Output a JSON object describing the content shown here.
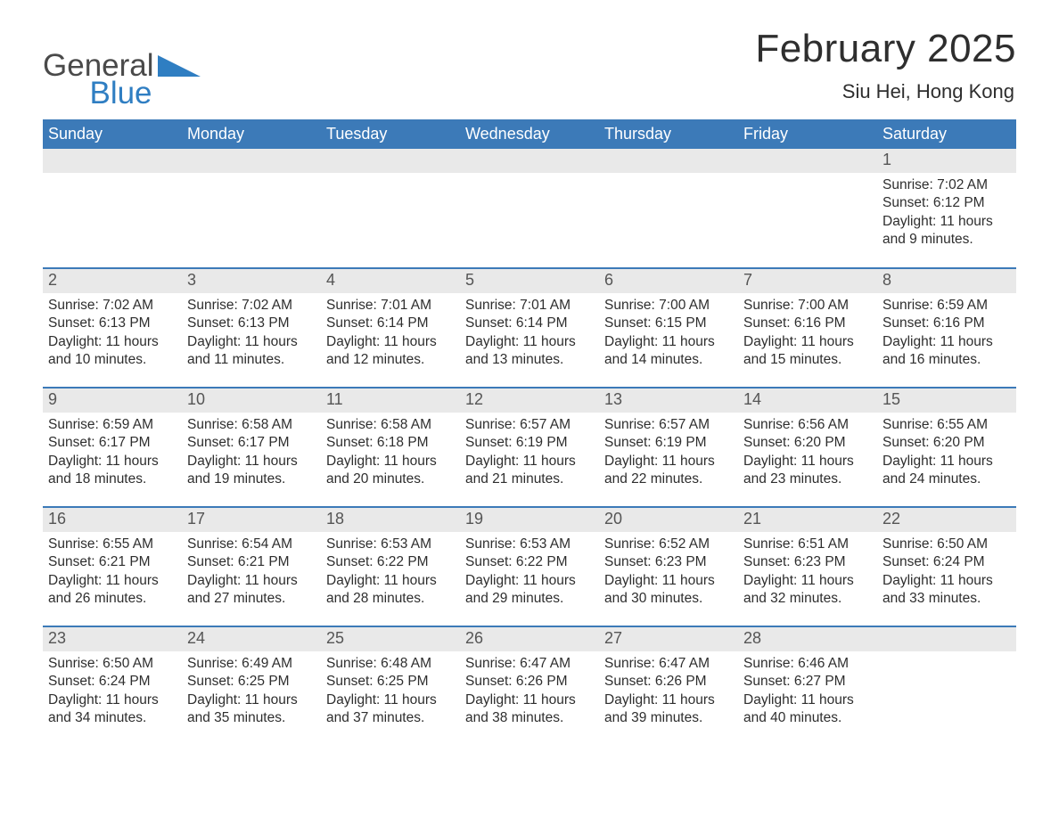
{
  "brand": {
    "line1": "General",
    "line2": "Blue",
    "text_color": "#4a4a4a",
    "accent_color": "#2f7ec2"
  },
  "title": "February 2025",
  "location": "Siu Hei, Hong Kong",
  "colors": {
    "header_bg": "#3c7ab8",
    "header_text": "#ffffff",
    "daynum_bg": "#e9e9e9",
    "daynum_text": "#555555",
    "body_text": "#2e2e2e",
    "page_bg": "#ffffff",
    "row_sep": "#3c7ab8"
  },
  "typography": {
    "title_fontsize": 44,
    "location_fontsize": 22,
    "header_fontsize": 18,
    "daynum_fontsize": 18,
    "body_fontsize": 15.5,
    "font_family": "Arial"
  },
  "layout": {
    "columns": 7,
    "rows": 5,
    "first_day_column_index": 6
  },
  "weekdays": [
    "Sunday",
    "Monday",
    "Tuesday",
    "Wednesday",
    "Thursday",
    "Friday",
    "Saturday"
  ],
  "days": [
    {
      "n": "1",
      "sunrise": "Sunrise: 7:02 AM",
      "sunset": "Sunset: 6:12 PM",
      "d1": "Daylight: 11 hours",
      "d2": "and 9 minutes."
    },
    {
      "n": "2",
      "sunrise": "Sunrise: 7:02 AM",
      "sunset": "Sunset: 6:13 PM",
      "d1": "Daylight: 11 hours",
      "d2": "and 10 minutes."
    },
    {
      "n": "3",
      "sunrise": "Sunrise: 7:02 AM",
      "sunset": "Sunset: 6:13 PM",
      "d1": "Daylight: 11 hours",
      "d2": "and 11 minutes."
    },
    {
      "n": "4",
      "sunrise": "Sunrise: 7:01 AM",
      "sunset": "Sunset: 6:14 PM",
      "d1": "Daylight: 11 hours",
      "d2": "and 12 minutes."
    },
    {
      "n": "5",
      "sunrise": "Sunrise: 7:01 AM",
      "sunset": "Sunset: 6:14 PM",
      "d1": "Daylight: 11 hours",
      "d2": "and 13 minutes."
    },
    {
      "n": "6",
      "sunrise": "Sunrise: 7:00 AM",
      "sunset": "Sunset: 6:15 PM",
      "d1": "Daylight: 11 hours",
      "d2": "and 14 minutes."
    },
    {
      "n": "7",
      "sunrise": "Sunrise: 7:00 AM",
      "sunset": "Sunset: 6:16 PM",
      "d1": "Daylight: 11 hours",
      "d2": "and 15 minutes."
    },
    {
      "n": "8",
      "sunrise": "Sunrise: 6:59 AM",
      "sunset": "Sunset: 6:16 PM",
      "d1": "Daylight: 11 hours",
      "d2": "and 16 minutes."
    },
    {
      "n": "9",
      "sunrise": "Sunrise: 6:59 AM",
      "sunset": "Sunset: 6:17 PM",
      "d1": "Daylight: 11 hours",
      "d2": "and 18 minutes."
    },
    {
      "n": "10",
      "sunrise": "Sunrise: 6:58 AM",
      "sunset": "Sunset: 6:17 PM",
      "d1": "Daylight: 11 hours",
      "d2": "and 19 minutes."
    },
    {
      "n": "11",
      "sunrise": "Sunrise: 6:58 AM",
      "sunset": "Sunset: 6:18 PM",
      "d1": "Daylight: 11 hours",
      "d2": "and 20 minutes."
    },
    {
      "n": "12",
      "sunrise": "Sunrise: 6:57 AM",
      "sunset": "Sunset: 6:19 PM",
      "d1": "Daylight: 11 hours",
      "d2": "and 21 minutes."
    },
    {
      "n": "13",
      "sunrise": "Sunrise: 6:57 AM",
      "sunset": "Sunset: 6:19 PM",
      "d1": "Daylight: 11 hours",
      "d2": "and 22 minutes."
    },
    {
      "n": "14",
      "sunrise": "Sunrise: 6:56 AM",
      "sunset": "Sunset: 6:20 PM",
      "d1": "Daylight: 11 hours",
      "d2": "and 23 minutes."
    },
    {
      "n": "15",
      "sunrise": "Sunrise: 6:55 AM",
      "sunset": "Sunset: 6:20 PM",
      "d1": "Daylight: 11 hours",
      "d2": "and 24 minutes."
    },
    {
      "n": "16",
      "sunrise": "Sunrise: 6:55 AM",
      "sunset": "Sunset: 6:21 PM",
      "d1": "Daylight: 11 hours",
      "d2": "and 26 minutes."
    },
    {
      "n": "17",
      "sunrise": "Sunrise: 6:54 AM",
      "sunset": "Sunset: 6:21 PM",
      "d1": "Daylight: 11 hours",
      "d2": "and 27 minutes."
    },
    {
      "n": "18",
      "sunrise": "Sunrise: 6:53 AM",
      "sunset": "Sunset: 6:22 PM",
      "d1": "Daylight: 11 hours",
      "d2": "and 28 minutes."
    },
    {
      "n": "19",
      "sunrise": "Sunrise: 6:53 AM",
      "sunset": "Sunset: 6:22 PM",
      "d1": "Daylight: 11 hours",
      "d2": "and 29 minutes."
    },
    {
      "n": "20",
      "sunrise": "Sunrise: 6:52 AM",
      "sunset": "Sunset: 6:23 PM",
      "d1": "Daylight: 11 hours",
      "d2": "and 30 minutes."
    },
    {
      "n": "21",
      "sunrise": "Sunrise: 6:51 AM",
      "sunset": "Sunset: 6:23 PM",
      "d1": "Daylight: 11 hours",
      "d2": "and 32 minutes."
    },
    {
      "n": "22",
      "sunrise": "Sunrise: 6:50 AM",
      "sunset": "Sunset: 6:24 PM",
      "d1": "Daylight: 11 hours",
      "d2": "and 33 minutes."
    },
    {
      "n": "23",
      "sunrise": "Sunrise: 6:50 AM",
      "sunset": "Sunset: 6:24 PM",
      "d1": "Daylight: 11 hours",
      "d2": "and 34 minutes."
    },
    {
      "n": "24",
      "sunrise": "Sunrise: 6:49 AM",
      "sunset": "Sunset: 6:25 PM",
      "d1": "Daylight: 11 hours",
      "d2": "and 35 minutes."
    },
    {
      "n": "25",
      "sunrise": "Sunrise: 6:48 AM",
      "sunset": "Sunset: 6:25 PM",
      "d1": "Daylight: 11 hours",
      "d2": "and 37 minutes."
    },
    {
      "n": "26",
      "sunrise": "Sunrise: 6:47 AM",
      "sunset": "Sunset: 6:26 PM",
      "d1": "Daylight: 11 hours",
      "d2": "and 38 minutes."
    },
    {
      "n": "27",
      "sunrise": "Sunrise: 6:47 AM",
      "sunset": "Sunset: 6:26 PM",
      "d1": "Daylight: 11 hours",
      "d2": "and 39 minutes."
    },
    {
      "n": "28",
      "sunrise": "Sunrise: 6:46 AM",
      "sunset": "Sunset: 6:27 PM",
      "d1": "Daylight: 11 hours",
      "d2": "and 40 minutes."
    }
  ]
}
